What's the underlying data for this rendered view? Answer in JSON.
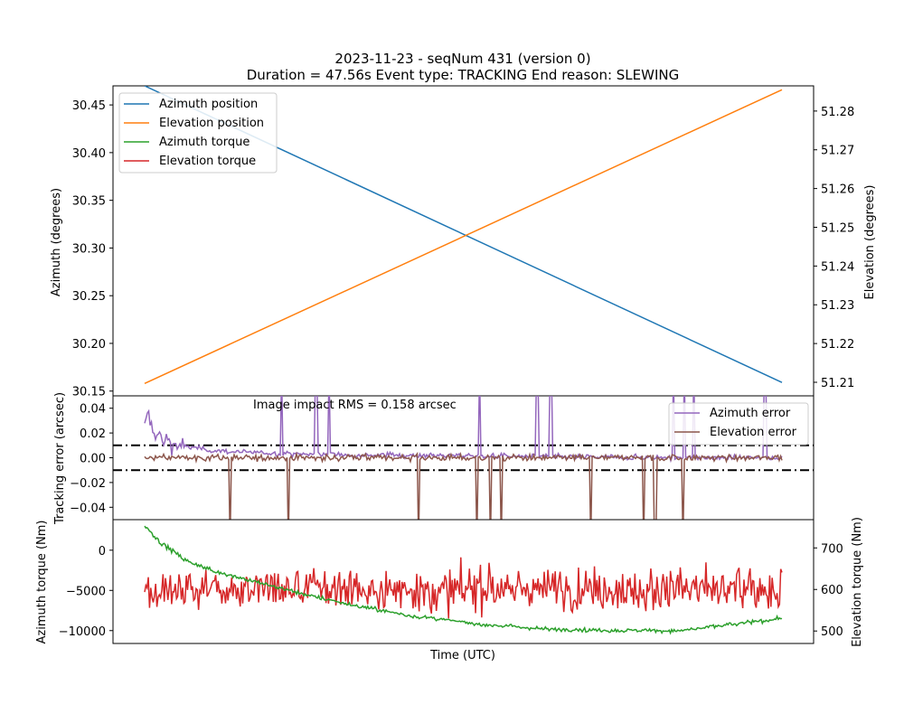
{
  "title_line1": "2023-11-23 - seqNum 431 (version 0)",
  "title_line2": "Duration = 47.56s Event type: TRACKING End reason: SLEWING",
  "colors": {
    "azimuth_position": "#1f77b4",
    "elevation_position": "#ff7f0e",
    "azimuth_torque": "#2ca02c",
    "elevation_torque": "#d62728",
    "azimuth_error": "#9467bd",
    "elevation_error": "#8c564b"
  },
  "chart_data": [
    {
      "type": "line",
      "panel": "position",
      "xlabel": "",
      "ylabel_left": "Azimuth (degrees)",
      "ylabel_right": "Elevation (degrees)",
      "x_range": [
        0,
        47.56
      ],
      "ylim_left": [
        30.145,
        30.47
      ],
      "ylim_right": [
        51.2065,
        51.2865
      ],
      "yticks_left": [
        "30.15",
        "30.20",
        "30.25",
        "30.30",
        "30.35",
        "30.40",
        "30.45"
      ],
      "yticks_right": [
        "51.21",
        "51.22",
        "51.23",
        "51.24",
        "51.25",
        "51.26",
        "51.27",
        "51.28"
      ],
      "legend_position": "top-left",
      "legend": [
        "Azimuth position",
        "Elevation position",
        "Azimuth torque",
        "Elevation torque"
      ],
      "series": [
        {
          "name": "Azimuth position",
          "axis": "left",
          "x": [
            0,
            47.56
          ],
          "values": [
            30.47,
            30.159
          ]
        },
        {
          "name": "Elevation position",
          "axis": "right",
          "x": [
            0,
            47.56
          ],
          "values": [
            51.2097,
            51.2855
          ]
        }
      ]
    },
    {
      "type": "line",
      "panel": "tracking_error",
      "ylabel": "Tracking error (arcsec)",
      "ylim": [
        -0.05,
        0.05
      ],
      "yticks": [
        "0.04",
        "0.02",
        "0.00",
        "−0.02",
        "−0.04"
      ],
      "threshold_lines": [
        0.01,
        -0.01
      ],
      "annotation": "Image impact RMS = 0.158 arcsec",
      "legend_position": "top-right",
      "legend": [
        "Azimuth error",
        "Elevation error"
      ],
      "azimuth_error_spikes": [
        10.2,
        12.8,
        13.8,
        25.0,
        29.3,
        30.3,
        39.5,
        40.3,
        41.0,
        46.3
      ],
      "elevation_error_spikes": [
        6.4,
        10.7,
        20.4,
        24.8,
        25.8,
        26.6,
        33.3,
        37.2,
        38.1,
        40.2
      ],
      "series": [
        {
          "name": "Azimuth error",
          "x": [
            0,
            0.3,
            0.6,
            1.0,
            2.0,
            3.0,
            5.0,
            8.0,
            12.0,
            20.0,
            30.0,
            40.0,
            47.56
          ],
          "values": [
            0.024,
            0.035,
            0.022,
            0.018,
            0.012,
            0.009,
            0.006,
            0.004,
            0.003,
            0.002,
            0.001,
            0.0,
            0.0
          ]
        },
        {
          "name": "Elevation error",
          "x": [
            0,
            47.56
          ],
          "values": [
            0.0,
            0.0
          ]
        }
      ]
    },
    {
      "type": "line",
      "panel": "torque",
      "xlabel": "Time (UTC)",
      "ylabel_left": "Azimuth torque (Nm)",
      "ylabel_right": "Elevation torque (Nm)",
      "ylim_left": [
        -11600,
        3800
      ],
      "ylim_right": [
        470,
        768
      ],
      "yticks_left": [
        "0",
        "−5000",
        "−10000"
      ],
      "yticks_right": [
        "700",
        "600",
        "500"
      ],
      "series": [
        {
          "name": "Azimuth torque",
          "axis": "left",
          "x": [
            0,
            0.3,
            1,
            2,
            3,
            5,
            8,
            12,
            16,
            20,
            25,
            30,
            35,
            40,
            44,
            47.56
          ],
          "values": [
            3000,
            2600,
            1200,
            0,
            -1200,
            -2500,
            -3800,
            -5500,
            -7000,
            -8200,
            -9200,
            -9800,
            -10000,
            -10000,
            -9200,
            -8500
          ]
        },
        {
          "name": "Elevation torque",
          "axis": "right",
          "x": [
            0,
            47.56
          ],
          "values": [
            600,
            600
          ]
        }
      ]
    }
  ]
}
